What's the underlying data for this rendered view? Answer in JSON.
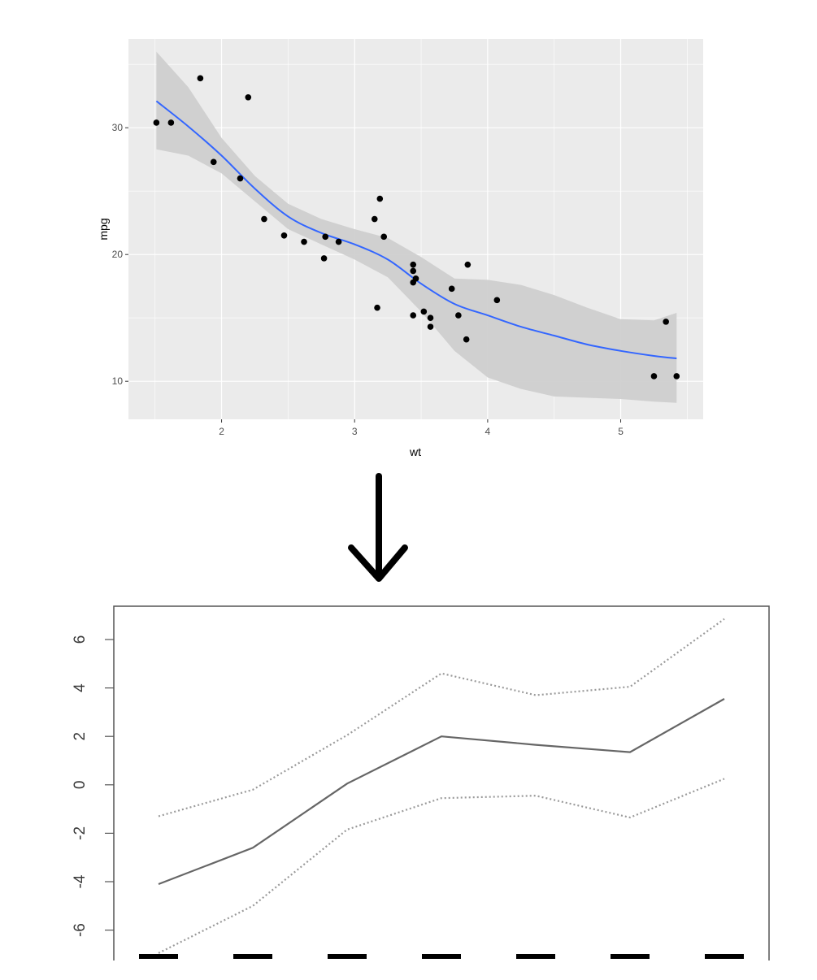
{
  "chart_data": [
    {
      "type": "scatter",
      "title": "",
      "xlabel": "wt",
      "ylabel": "mpg",
      "xlim": [
        1.3,
        5.62
      ],
      "ylim": [
        7,
        37
      ],
      "x_ticks": [
        "2",
        "3",
        "4",
        "5"
      ],
      "y_ticks": [
        "10",
        "20",
        "30"
      ],
      "grid": true,
      "points": [
        {
          "x": 1.51,
          "y": 30.4
        },
        {
          "x": 1.62,
          "y": 30.4
        },
        {
          "x": 1.84,
          "y": 33.9
        },
        {
          "x": 1.94,
          "y": 27.3
        },
        {
          "x": 2.14,
          "y": 26.0
        },
        {
          "x": 2.2,
          "y": 32.4
        },
        {
          "x": 2.32,
          "y": 22.8
        },
        {
          "x": 2.47,
          "y": 21.5
        },
        {
          "x": 2.62,
          "y": 21.0
        },
        {
          "x": 2.77,
          "y": 19.7
        },
        {
          "x": 2.78,
          "y": 21.4
        },
        {
          "x": 2.88,
          "y": 21.0
        },
        {
          "x": 3.15,
          "y": 22.8
        },
        {
          "x": 3.17,
          "y": 15.8
        },
        {
          "x": 3.19,
          "y": 24.4
        },
        {
          "x": 3.22,
          "y": 21.4
        },
        {
          "x": 3.44,
          "y": 19.2
        },
        {
          "x": 3.44,
          "y": 18.7
        },
        {
          "x": 3.44,
          "y": 17.8
        },
        {
          "x": 3.44,
          "y": 15.2
        },
        {
          "x": 3.46,
          "y": 18.1
        },
        {
          "x": 3.52,
          "y": 15.5
        },
        {
          "x": 3.57,
          "y": 15.0
        },
        {
          "x": 3.57,
          "y": 14.3
        },
        {
          "x": 3.73,
          "y": 17.3
        },
        {
          "x": 3.78,
          "y": 15.2
        },
        {
          "x": 3.84,
          "y": 13.3
        },
        {
          "x": 3.85,
          "y": 19.2
        },
        {
          "x": 4.07,
          "y": 16.4
        },
        {
          "x": 5.25,
          "y": 10.4
        },
        {
          "x": 5.34,
          "y": 14.7
        },
        {
          "x": 5.42,
          "y": 10.4
        }
      ],
      "smooth": {
        "x": [
          1.51,
          1.75,
          2.0,
          2.25,
          2.5,
          2.75,
          3.0,
          3.25,
          3.5,
          3.75,
          4.0,
          4.25,
          4.5,
          4.75,
          5.0,
          5.25,
          5.42
        ],
        "fit": [
          32.1,
          30.1,
          27.8,
          25.2,
          23.0,
          21.7,
          20.8,
          19.6,
          17.7,
          16.1,
          15.2,
          14.3,
          13.6,
          12.9,
          12.4,
          12.0,
          11.8
        ],
        "lower": [
          28.3,
          27.8,
          26.4,
          24.2,
          22.0,
          20.8,
          19.6,
          18.2,
          15.5,
          12.4,
          10.3,
          9.4,
          8.8,
          8.7,
          8.6,
          8.4,
          8.3
        ],
        "upper": [
          36.0,
          33.2,
          29.2,
          26.2,
          24.0,
          22.8,
          22.0,
          21.3,
          19.8,
          18.1,
          18.0,
          17.6,
          16.8,
          15.8,
          14.9,
          14.8,
          15.4
        ]
      },
      "colors": {
        "panel": "#ebebeb",
        "grid": "#ffffff",
        "points": "#000000",
        "line": "#3366ff",
        "ribbon": "#cfcfcf"
      }
    },
    {
      "type": "line",
      "title": "",
      "xlabel": "",
      "ylabel": "",
      "x": [
        1,
        2,
        3,
        4,
        5,
        6,
        7
      ],
      "ylim": [
        -7.2,
        7.2
      ],
      "y_ticks": [
        6,
        4,
        2,
        0,
        -2,
        -4,
        -6
      ],
      "y_tick_labels": [
        "6",
        "4",
        "2",
        "0",
        "-2",
        "-4",
        "-6"
      ],
      "series": [
        {
          "values": [
            -4.1,
            -2.6,
            0.05,
            2.0,
            1.65,
            1.35,
            3.55
          ],
          "style": "solid",
          "color": "#666666"
        },
        {
          "values": [
            -1.3,
            -0.2,
            2.05,
            4.6,
            3.7,
            4.05,
            6.85
          ],
          "style": "dotted",
          "color": "#9a9a9a"
        },
        {
          "values": [
            -6.95,
            -5.0,
            -1.85,
            -0.55,
            -0.45,
            -1.35,
            0.25
          ],
          "style": "dotted",
          "color": "#9a9a9a"
        }
      ],
      "rug_marks": 7
    }
  ],
  "connector": {
    "icon": "arrow-down-icon",
    "color": "#000000"
  }
}
